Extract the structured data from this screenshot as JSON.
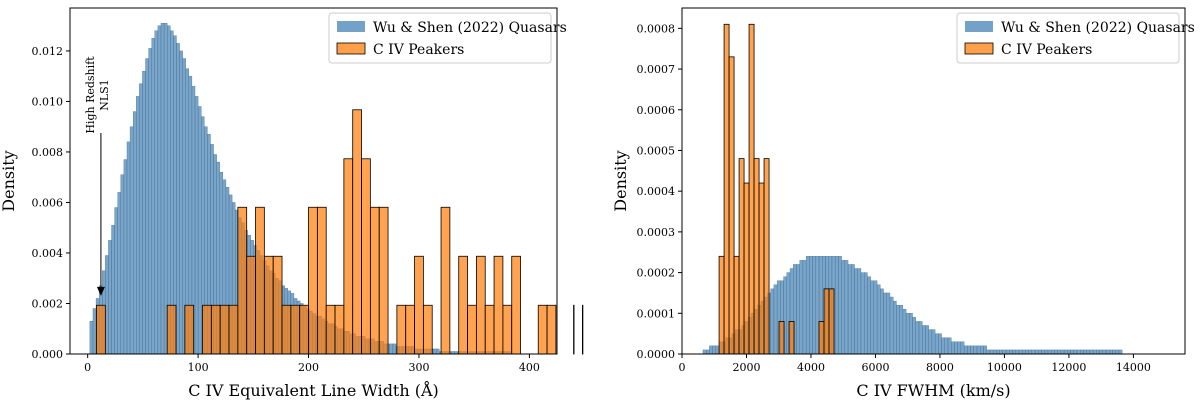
{
  "chart_data": [
    {
      "type": "bar",
      "subtype": "histogram",
      "xlabel": "C IV Equivalent Line Width (Å)",
      "ylabel": "Density",
      "xlim": [
        -16,
        425
      ],
      "ylim": [
        0,
        0.0137
      ],
      "xticks": [
        0,
        100,
        200,
        300,
        400
      ],
      "xtick_labels": [
        "0",
        "100",
        "200",
        "300",
        "400"
      ],
      "yticks": [
        0,
        0.002,
        0.004,
        0.006,
        0.008,
        0.01,
        0.012
      ],
      "ytick_labels": [
        "0.000",
        "0.002",
        "0.004",
        "0.006",
        "0.008",
        "0.010",
        "0.012"
      ],
      "legend_position": "top-right",
      "annotation": {
        "line1": "High Redshift",
        "line2": "NLS1",
        "arrow_to_x": 12,
        "arrow_to_y": 0.0023
      },
      "series": [
        {
          "name": "Wu & Shen (2022) Quasars",
          "color": "#4682b4",
          "bin_width": 2.8,
          "x_start": 2,
          "peak_x": 64,
          "peak_value": 0.0131,
          "values": [
            0.0013,
            0.0018,
            0.0022,
            0.0027,
            0.0033,
            0.0039,
            0.0045,
            0.0051,
            0.0058,
            0.0064,
            0.0071,
            0.0077,
            0.0084,
            0.009,
            0.0096,
            0.0102,
            0.0107,
            0.0112,
            0.0117,
            0.0121,
            0.0125,
            0.0128,
            0.013,
            0.0131,
            0.0131,
            0.013,
            0.0128,
            0.0126,
            0.0123,
            0.012,
            0.0117,
            0.0113,
            0.011,
            0.0106,
            0.0102,
            0.0098,
            0.0094,
            0.009,
            0.0087,
            0.0083,
            0.0079,
            0.0076,
            0.0072,
            0.0069,
            0.0066,
            0.0063,
            0.006,
            0.0057,
            0.0054,
            0.0052,
            0.0049,
            0.0047,
            0.0045,
            0.0043,
            0.0041,
            0.0039,
            0.0037,
            0.0035,
            0.0033,
            0.0032,
            0.003,
            0.0029,
            0.0027,
            0.0026,
            0.0025,
            0.0024,
            0.0022,
            0.0021,
            0.002,
            0.0019,
            0.0018,
            0.0017,
            0.0016,
            0.0015,
            0.0015,
            0.0014,
            0.0013,
            0.0012,
            0.0012,
            0.0011,
            0.001,
            0.001,
            0.0009,
            0.0009,
            0.0008,
            0.0008,
            0.0007,
            0.0007,
            0.0007,
            0.0006,
            0.0006,
            0.0006,
            0.0005,
            0.0005,
            0.0005,
            0.0004,
            0.0004,
            0.0004,
            0.0004,
            0.0003,
            0.0003,
            0.0003,
            0.0003,
            0.0003,
            0.0003,
            0.0002,
            0.0002,
            0.0002,
            0.0002,
            0.0002,
            0.0002,
            0.0002,
            0.0002,
            0.0001,
            0.0001,
            0.0001,
            0.0001,
            0.0001,
            0.0001,
            0.0001,
            0.0001,
            0.0001,
            0.0001,
            0.0001,
            0.0001,
            0.0001,
            0.0001,
            0.0001,
            0.0001,
            0.0001,
            0.0001,
            0.0001,
            0.0001,
            0.0001,
            0.0001,
            0.0001
          ]
        },
        {
          "name": "C IV Peakers",
          "color": "#ff7f0e",
          "bin_width": 8.0,
          "x_start": 8,
          "values": [
            0.00193,
            0,
            0,
            0,
            0,
            0,
            0,
            0,
            0.00193,
            0,
            0.00193,
            0,
            0.00193,
            0.00193,
            0.00193,
            0.00193,
            0.00581,
            0.00387,
            0.00581,
            0.00387,
            0.00387,
            0.00193,
            0.00193,
            0.00193,
            0.00581,
            0.00581,
            0.00193,
            0.00193,
            0.00773,
            0.00967,
            0.00773,
            0.00581,
            0.00581,
            0,
            0.00193,
            0.00193,
            0.00387,
            0.00193,
            0,
            0.00581,
            0,
            0.00387,
            0.00193,
            0.00387,
            0.00193,
            0.00387,
            0.00193,
            0.00387,
            0,
            0,
            0.00193,
            0.00193,
            0,
            0,
            0.00193,
            0.00193
          ]
        }
      ]
    },
    {
      "type": "bar",
      "subtype": "histogram",
      "xlabel": "C IV FWHM (km/s)",
      "ylabel": "Density",
      "xlim": [
        0,
        15600
      ],
      "ylim": [
        0,
        0.00085
      ],
      "xticks": [
        0,
        2000,
        4000,
        6000,
        8000,
        10000,
        12000,
        14000
      ],
      "xtick_labels": [
        "0",
        "2000",
        "4000",
        "6000",
        "8000",
        "10000",
        "12000",
        "14000"
      ],
      "yticks": [
        0,
        0.0001,
        0.0002,
        0.0003,
        0.0004,
        0.0005,
        0.0006,
        0.0007,
        0.0008
      ],
      "ytick_labels": [
        "0.0000",
        "0.0001",
        "0.0002",
        "0.0003",
        "0.0004",
        "0.0005",
        "0.0006",
        "0.0007",
        "0.0008"
      ],
      "legend_position": "top-right",
      "series": [
        {
          "name": "Wu & Shen (2022) Quasars",
          "color": "#4682b4",
          "bin_width": 100,
          "x_start": 650,
          "values": [
            1e-05,
            1e-05,
            2e-05,
            2e-05,
            2e-05,
            3e-05,
            3e-05,
            4e-05,
            4e-05,
            5e-05,
            6e-05,
            6e-05,
            7e-05,
            8e-05,
            9e-05,
            0.0001,
            0.00011,
            0.00012,
            0.00013,
            0.00014,
            0.00015,
            0.00016,
            0.00017,
            0.00018,
            0.00018,
            0.00019,
            0.0002,
            0.00021,
            0.00022,
            0.00022,
            0.00023,
            0.00023,
            0.00024,
            0.00024,
            0.00024,
            0.00024,
            0.00024,
            0.00024,
            0.00024,
            0.00024,
            0.00024,
            0.00024,
            0.00024,
            0.00023,
            0.00023,
            0.00022,
            0.00022,
            0.00021,
            0.00021,
            0.0002,
            0.0002,
            0.00019,
            0.00018,
            0.00018,
            0.00017,
            0.00016,
            0.00015,
            0.00015,
            0.00014,
            0.00013,
            0.00012,
            0.00012,
            0.00011,
            0.0001,
            0.0001,
            9e-05,
            8e-05,
            8e-05,
            7e-05,
            7e-05,
            6e-05,
            6e-05,
            5e-05,
            5e-05,
            4e-05,
            4e-05,
            4e-05,
            3e-05,
            3e-05,
            3e-05,
            3e-05,
            2e-05,
            2e-05,
            2e-05,
            2e-05,
            2e-05,
            2e-05,
            2e-05,
            1e-05,
            1e-05,
            1e-05,
            1e-05,
            1e-05,
            1e-05,
            1e-05,
            1e-05,
            1e-05,
            1e-05,
            1e-05,
            1e-05,
            1e-05,
            1e-05,
            1e-05,
            1e-05,
            1e-05,
            1e-05,
            1e-05,
            1e-05,
            1e-05,
            1e-05,
            1e-05,
            1e-05,
            1e-05,
            1e-05,
            1e-05,
            1e-05,
            1e-05,
            1e-05,
            1e-05,
            1e-05,
            1e-05,
            1e-05,
            1e-05,
            1e-05,
            1e-05,
            1e-05,
            1e-05,
            1e-05,
            1e-05,
            1e-05
          ]
        },
        {
          "name": "C IV Peakers",
          "color": "#ff7f0e",
          "bin_width": 155,
          "x_start": 1150,
          "values": [
            0.00024,
            0.00081,
            0.00073,
            0.00024,
            0.00048,
            0.00042,
            0.00081,
            0.00048,
            0.00042,
            0.00048,
            0,
            0,
            8e-05,
            0,
            8e-05,
            0,
            0,
            0,
            0,
            0,
            8e-05,
            0.00016,
            0.00016
          ]
        }
      ]
    }
  ]
}
